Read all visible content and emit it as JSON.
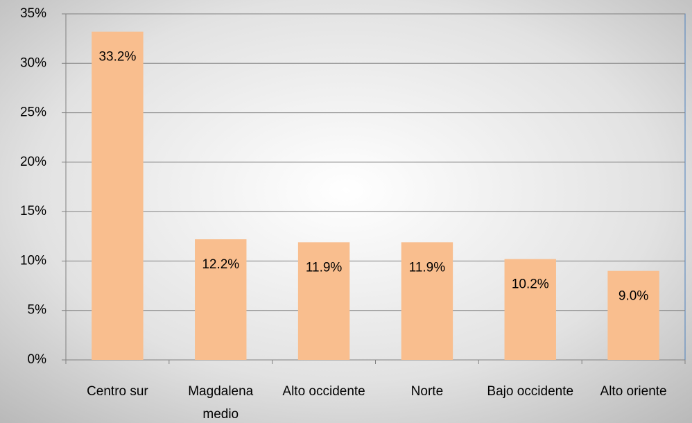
{
  "chart_data": {
    "type": "bar",
    "categories": [
      "Centro sur",
      "Magdalena medio",
      "Alto occidente",
      "Norte",
      "Bajo occidente",
      "Alto oriente"
    ],
    "values": [
      33.2,
      12.2,
      11.9,
      11.9,
      10.2,
      9.0
    ],
    "value_labels": [
      "33.2%",
      "12.2%",
      "11.9%",
      "11.9%",
      "10.2%",
      "9.0%"
    ],
    "color": "#f9be8e",
    "ylim": [
      0,
      35
    ],
    "yticks": [
      {
        "value": 0,
        "label": "0%"
      },
      {
        "value": 5,
        "label": "5%"
      },
      {
        "value": 10,
        "label": "10%"
      },
      {
        "value": 15,
        "label": "15%"
      },
      {
        "value": 20,
        "label": "20%"
      },
      {
        "value": 25,
        "label": "25%"
      },
      {
        "value": 30,
        "label": "30%"
      },
      {
        "value": 35,
        "label": "35%"
      }
    ],
    "grid": true
  }
}
